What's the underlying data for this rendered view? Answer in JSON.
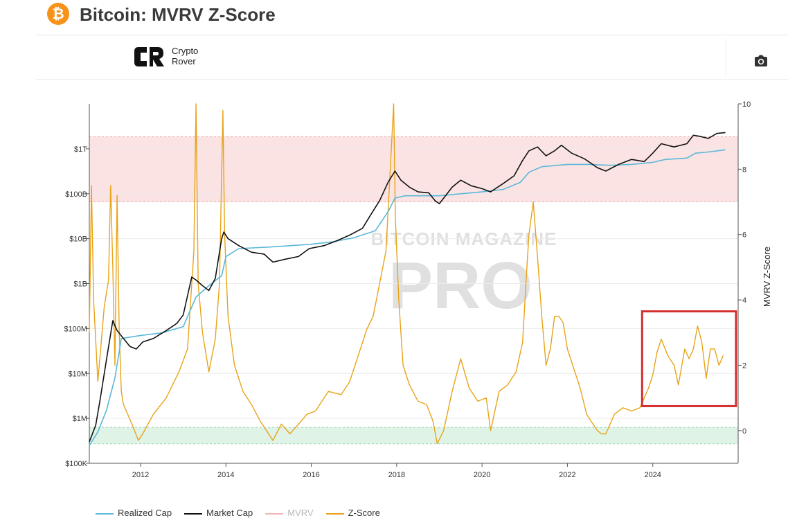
{
  "header": {
    "title": "Bitcoin: MVRV Z-Score",
    "icon": "bitcoin-icon",
    "icon_glyph": "₿"
  },
  "toolbar": {
    "logo": {
      "line1": "Crypto",
      "line2": "Rover",
      "mark_text": "CR"
    },
    "camera_icon": "camera-icon"
  },
  "watermark": {
    "line1": "BITCOIN MAGAZINE",
    "line2": "PRO"
  },
  "colors": {
    "realized": "#5bb8d8",
    "market": "#111111",
    "mvrv": "#f0b6b6",
    "zscore": "#e8a317",
    "red_band": "#fbe3e3",
    "green_band": "#dff3e6",
    "highlight": "#d32f2f",
    "brand": "#f7931a"
  },
  "legend": [
    {
      "label": "Realized Cap",
      "color": "#5bb8d8",
      "dim": false
    },
    {
      "label": "Market Cap",
      "color": "#111111",
      "dim": false
    },
    {
      "label": "MVRV",
      "color": "#f0b6b6",
      "dim": true
    },
    {
      "label": "Z-Score",
      "color": "#e8a317",
      "dim": false
    }
  ],
  "chart_data": {
    "type": "line",
    "xlim": [
      2010.8,
      2026.0
    ],
    "x_ticks": [
      "2012",
      "2014",
      "2016",
      "2018",
      "2020",
      "2022",
      "2024"
    ],
    "y_left_scale": "log",
    "y_left_ticks": [
      "$100K",
      "$1M",
      "$10M",
      "$100M",
      "$1B",
      "$10B",
      "$100B",
      "$1T"
    ],
    "y_right_label": "MVRV Z-Score",
    "y_right_ticks": [
      "10",
      "8",
      "6",
      "4",
      "2",
      "0"
    ],
    "y_right_lim": [
      -1,
      10
    ],
    "red_zone": {
      "from": 7,
      "to": 9
    },
    "green_zone": {
      "from": -0.4,
      "to": 0.1
    },
    "highlight_box": {
      "x": [
        2023.75,
        2025.95
      ],
      "z": [
        0.75,
        3.65
      ]
    },
    "series": [
      {
        "name": "Market Cap",
        "axis": "left",
        "x": [
          2010.8,
          2010.95,
          2011.05,
          2011.2,
          2011.35,
          2011.45,
          2011.6,
          2011.75,
          2011.9,
          2012.05,
          2012.3,
          2012.6,
          2012.85,
          2013.0,
          2013.2,
          2013.3,
          2013.45,
          2013.6,
          2013.75,
          2013.9,
          2013.95,
          2014.05,
          2014.3,
          2014.6,
          2014.9,
          2015.1,
          2015.4,
          2015.7,
          2015.95,
          2016.3,
          2016.6,
          2016.9,
          2017.2,
          2017.4,
          2017.6,
          2017.8,
          2017.96,
          2018.1,
          2018.3,
          2018.5,
          2018.75,
          2018.9,
          2019.0,
          2019.3,
          2019.5,
          2019.75,
          2020.0,
          2020.2,
          2020.5,
          2020.75,
          2020.95,
          2021.1,
          2021.3,
          2021.5,
          2021.7,
          2021.86,
          2022.1,
          2022.4,
          2022.7,
          2022.9,
          2023.2,
          2023.5,
          2023.8,
          2024.0,
          2024.2,
          2024.5,
          2024.8,
          2024.95,
          2025.1,
          2025.3,
          2025.5,
          2025.7
        ],
        "y": [
          300000,
          700000,
          2500000,
          20000000,
          150000000,
          90000000,
          60000000,
          40000000,
          35000000,
          50000000,
          60000000,
          90000000,
          130000000,
          200000000,
          1400000000,
          1200000000,
          900000000,
          700000000,
          1300000000,
          10000000000,
          14000000000,
          10000000000,
          7000000000,
          5000000000,
          4500000000,
          3000000000,
          3500000000,
          4000000000,
          6000000000,
          7000000000,
          9000000000,
          12000000000,
          17000000000,
          35000000000,
          70000000000,
          180000000000,
          320000000000,
          200000000000,
          140000000000,
          110000000000,
          105000000000,
          70000000000,
          60000000000,
          140000000000,
          200000000000,
          150000000000,
          130000000000,
          110000000000,
          170000000000,
          250000000000,
          550000000000,
          900000000000,
          1100000000000,
          700000000000,
          900000000000,
          1200000000000,
          800000000000,
          600000000000,
          380000000000,
          320000000000,
          450000000000,
          580000000000,
          520000000000,
          800000000000,
          1300000000000,
          1100000000000,
          1300000000000,
          2000000000000,
          1900000000000,
          1700000000000,
          2200000000000,
          2300000000000
        ]
      },
      {
        "name": "Realized Cap",
        "axis": "left",
        "x": [
          2010.8,
          2011.0,
          2011.2,
          2011.4,
          2011.55,
          2012.0,
          2012.5,
          2013.0,
          2013.3,
          2013.6,
          2013.9,
          2014.0,
          2014.3,
          2015.0,
          2016.0,
          2016.5,
          2017.0,
          2017.5,
          2017.8,
          2017.96,
          2018.2,
          2019.0,
          2019.5,
          2020.0,
          2020.5,
          2020.9,
          2021.1,
          2021.4,
          2022.0,
          2022.5,
          2023.0,
          2023.5,
          2024.0,
          2024.3,
          2024.8,
          2025.0,
          2025.3,
          2025.7
        ],
        "y": [
          250000,
          500000,
          1500000,
          8000000,
          60000000,
          70000000,
          80000000,
          110000000,
          500000000,
          900000000,
          1500000000,
          4000000000,
          6000000000,
          6500000000,
          7500000000,
          8500000000,
          10500000000,
          15000000000,
          40000000000,
          80000000000,
          90000000000,
          90000000000,
          100000000000,
          110000000000,
          125000000000,
          180000000000,
          300000000000,
          400000000000,
          450000000000,
          450000000000,
          430000000000,
          450000000000,
          500000000000,
          580000000000,
          620000000000,
          800000000000,
          850000000000,
          950000000000
        ]
      },
      {
        "name": "Z-Score",
        "axis": "right",
        "x": [
          2010.8,
          2010.85,
          2010.9,
          2011.0,
          2011.15,
          2011.25,
          2011.3,
          2011.35,
          2011.4,
          2011.45,
          2011.5,
          2011.55,
          2011.6,
          2011.8,
          2011.95,
          2012.05,
          2012.3,
          2012.6,
          2012.9,
          2013.1,
          2013.25,
          2013.3,
          2013.35,
          2013.45,
          2013.6,
          2013.75,
          2013.85,
          2013.93,
          2013.97,
          2014.05,
          2014.2,
          2014.4,
          2014.6,
          2014.8,
          2014.95,
          2015.1,
          2015.3,
          2015.5,
          2015.7,
          2015.9,
          2016.1,
          2016.4,
          2016.7,
          2016.9,
          2017.1,
          2017.3,
          2017.45,
          2017.6,
          2017.75,
          2017.85,
          2017.93,
          2017.97,
          2018.05,
          2018.15,
          2018.3,
          2018.5,
          2018.7,
          2018.85,
          2018.95,
          2019.1,
          2019.3,
          2019.5,
          2019.7,
          2019.9,
          2020.1,
          2020.2,
          2020.4,
          2020.6,
          2020.8,
          2020.95,
          2021.05,
          2021.1,
          2021.2,
          2021.3,
          2021.4,
          2021.5,
          2021.6,
          2021.7,
          2021.8,
          2021.9,
          2022.0,
          2022.15,
          2022.3,
          2022.45,
          2022.55,
          2022.7,
          2022.8,
          2022.9,
          2023.0,
          2023.1,
          2023.3,
          2023.5,
          2023.7,
          2023.9,
          2024.0,
          2024.1,
          2024.2,
          2024.35,
          2024.5,
          2024.6,
          2024.75,
          2024.85,
          2024.95,
          2025.05,
          2025.15,
          2025.25,
          2025.35,
          2025.45,
          2025.55,
          2025.65
        ],
        "y": [
          3.0,
          7.5,
          4.0,
          1.5,
          3.8,
          4.6,
          7.5,
          5.0,
          2.0,
          7.2,
          3.0,
          1.2,
          0.8,
          0.2,
          -0.3,
          -0.1,
          0.5,
          1.0,
          1.8,
          2.5,
          5.5,
          10.0,
          4.5,
          3.0,
          1.8,
          2.8,
          4.5,
          9.8,
          6.0,
          3.5,
          2.0,
          1.2,
          0.8,
          0.3,
          0.0,
          -0.3,
          0.2,
          -0.1,
          0.2,
          0.5,
          0.6,
          1.2,
          1.1,
          1.5,
          2.3,
          3.1,
          3.5,
          4.5,
          5.5,
          8.0,
          10.0,
          6.5,
          4.0,
          2.0,
          1.4,
          0.9,
          0.8,
          0.3,
          -0.4,
          0.0,
          1.2,
          2.2,
          1.3,
          0.9,
          1.0,
          0.0,
          1.2,
          1.4,
          1.8,
          2.7,
          5.0,
          6.0,
          7.0,
          5.3,
          3.5,
          2.0,
          2.5,
          3.5,
          3.5,
          3.3,
          2.5,
          1.9,
          1.3,
          0.5,
          0.3,
          0.0,
          -0.1,
          -0.1,
          0.2,
          0.5,
          0.7,
          0.6,
          0.7,
          1.3,
          1.7,
          2.4,
          2.8,
          2.3,
          2.0,
          1.4,
          2.5,
          2.2,
          2.5,
          3.2,
          2.7,
          1.6,
          2.5,
          2.5,
          2.0,
          2.3
        ]
      }
    ]
  }
}
